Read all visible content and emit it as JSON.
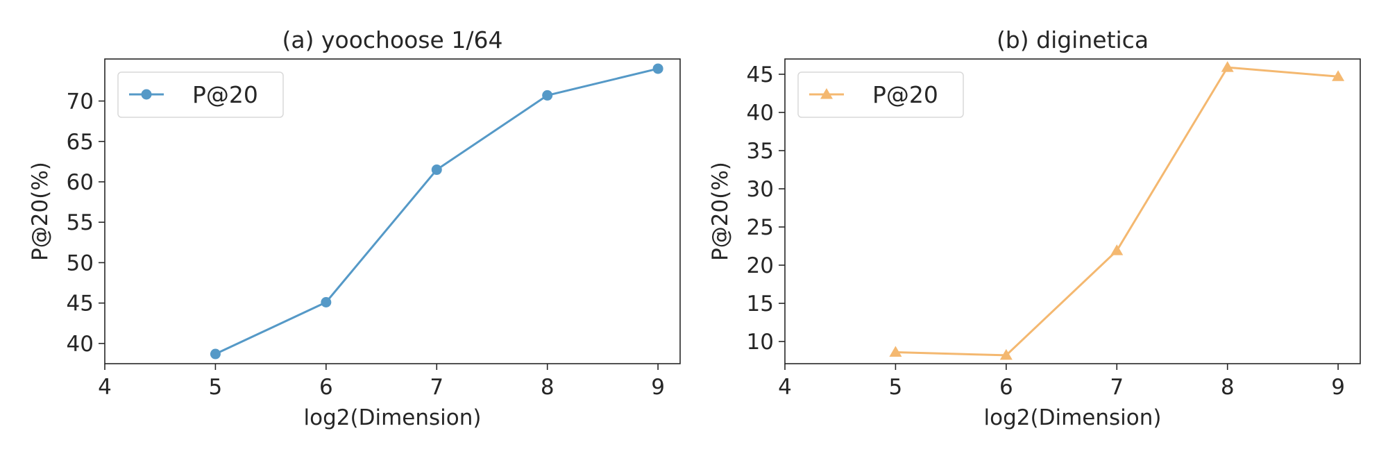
{
  "chart_data": [
    {
      "type": "line",
      "title": "(a) yoochoose 1/64",
      "xlabel": "log2(Dimension)",
      "ylabel": "P@20(%)",
      "x": [
        5,
        6,
        7,
        8,
        9
      ],
      "series": [
        {
          "name": "P@20",
          "values": [
            38.7,
            45.1,
            61.5,
            70.7,
            74.0
          ],
          "color": "#5599c7",
          "marker": "circle"
        }
      ],
      "xlim": [
        4,
        9.2
      ],
      "ylim": [
        37.5,
        75.2
      ],
      "xticks": [
        "4",
        "5",
        "6",
        "7",
        "8",
        "9"
      ],
      "yticks": [
        "40",
        "45",
        "50",
        "55",
        "60",
        "65",
        "70"
      ],
      "grid": false,
      "legend": "upper-left"
    },
    {
      "type": "line",
      "title": "(b) diginetica",
      "xlabel": "log2(Dimension)",
      "ylabel": "P@20(%)",
      "x": [
        5,
        6,
        7,
        8,
        9
      ],
      "series": [
        {
          "name": "P@20",
          "values": [
            8.6,
            8.2,
            21.9,
            45.9,
            44.7
          ],
          "color": "#f4b870",
          "marker": "triangle"
        }
      ],
      "xlim": [
        4,
        9.2
      ],
      "ylim": [
        7.1,
        47.0
      ],
      "xticks": [
        "4",
        "5",
        "6",
        "7",
        "8",
        "9"
      ],
      "yticks": [
        "10",
        "15",
        "20",
        "25",
        "30",
        "35",
        "40",
        "45"
      ],
      "grid": false,
      "legend": "upper-left"
    }
  ]
}
